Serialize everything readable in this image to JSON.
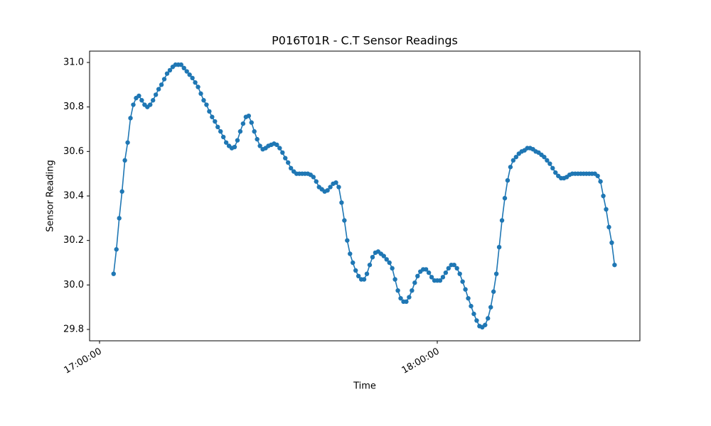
{
  "chart_data": {
    "type": "line",
    "title": "P016T01R - C.T Sensor Readings",
    "x_label": "Time",
    "y_label": "Sensor Reading",
    "xlim": [
      "16:58:14",
      "18:36:00"
    ],
    "xticks": [
      "17:00:00",
      "18:00:00"
    ],
    "ylim": [
      29.749,
      31.051
    ],
    "yticks": [
      29.8,
      {
        "value": 30.0,
        "label": "30.0"
      },
      30.2,
      30.4,
      30.6,
      30.8,
      {
        "value": 31.0,
        "label": "31.0"
      }
    ],
    "grid": false,
    "series": [
      {
        "color": "#1f77b4",
        "x": [
          "17:02:30",
          "17:03:00",
          "17:03:30",
          "17:04:00",
          "17:04:30",
          "17:05:00",
          "17:05:30",
          "17:06:00",
          "17:06:30",
          "17:07:00",
          "17:07:30",
          "17:08:00",
          "17:08:30",
          "17:09:00",
          "17:09:30",
          "17:10:00",
          "17:10:30",
          "17:11:00",
          "17:11:30",
          "17:12:00",
          "17:12:30",
          "17:13:00",
          "17:13:30",
          "17:14:00",
          "17:14:30",
          "17:15:00",
          "17:15:30",
          "17:16:00",
          "17:16:30",
          "17:17:00",
          "17:17:30",
          "17:18:00",
          "17:18:30",
          "17:19:00",
          "17:19:30",
          "17:20:00",
          "17:20:30",
          "17:21:00",
          "17:21:30",
          "17:22:00",
          "17:22:30",
          "17:23:00",
          "17:23:30",
          "17:24:00",
          "17:24:30",
          "17:25:00",
          "17:25:30",
          "17:26:00",
          "17:26:30",
          "17:27:00",
          "17:27:30",
          "17:28:00",
          "17:28:30",
          "17:29:00",
          "17:29:30",
          "17:30:00",
          "17:30:30",
          "17:31:00",
          "17:31:30",
          "17:32:00",
          "17:32:30",
          "17:33:00",
          "17:33:30",
          "17:34:00",
          "17:34:30",
          "17:35:00",
          "17:35:30",
          "17:36:00",
          "17:36:30",
          "17:37:00",
          "17:37:30",
          "17:38:00",
          "17:38:30",
          "17:39:00",
          "17:39:30",
          "17:40:00",
          "17:40:30",
          "17:41:00",
          "17:41:30",
          "17:42:00",
          "17:42:30",
          "17:43:00",
          "17:43:30",
          "17:44:00",
          "17:44:30",
          "17:45:00",
          "17:45:30",
          "17:46:00",
          "17:46:30",
          "17:47:00",
          "17:47:30",
          "17:48:00",
          "17:48:30",
          "17:49:00",
          "17:49:30",
          "17:50:00",
          "17:50:30",
          "17:51:00",
          "17:51:30",
          "17:52:00",
          "17:52:30",
          "17:53:00",
          "17:53:30",
          "17:54:00",
          "17:54:30",
          "17:55:00",
          "17:55:30",
          "17:56:00",
          "17:56:30",
          "17:57:00",
          "17:57:30",
          "17:58:00",
          "17:58:30",
          "17:59:00",
          "17:59:30",
          "18:00:00",
          "18:00:30",
          "18:01:00",
          "18:01:30",
          "18:02:00",
          "18:02:30",
          "18:03:00",
          "18:03:30",
          "18:04:00",
          "18:04:30",
          "18:05:00",
          "18:05:30",
          "18:06:00",
          "18:06:30",
          "18:07:00",
          "18:07:30",
          "18:08:00",
          "18:08:30",
          "18:09:00",
          "18:09:30",
          "18:10:00",
          "18:10:30",
          "18:11:00",
          "18:11:30",
          "18:12:00",
          "18:12:30",
          "18:13:00",
          "18:13:30",
          "18:14:00",
          "18:14:30",
          "18:15:00",
          "18:15:30",
          "18:16:00",
          "18:16:30",
          "18:17:00",
          "18:17:30",
          "18:18:00",
          "18:18:30",
          "18:19:00",
          "18:19:30",
          "18:20:00",
          "18:20:30",
          "18:21:00",
          "18:21:30",
          "18:22:00",
          "18:22:30",
          "18:23:00",
          "18:23:30",
          "18:24:00",
          "18:24:30",
          "18:25:00",
          "18:25:30",
          "18:26:00",
          "18:26:30",
          "18:27:00",
          "18:27:30",
          "18:28:00",
          "18:28:30",
          "18:29:00",
          "18:29:30",
          "18:30:00",
          "18:30:30",
          "18:31:00",
          "18:31:30"
        ],
        "values": [
          30.05,
          30.16,
          30.3,
          30.42,
          30.56,
          30.64,
          30.75,
          30.81,
          30.84,
          30.85,
          30.83,
          30.81,
          30.8,
          30.81,
          30.83,
          30.855,
          30.88,
          30.9,
          30.925,
          30.95,
          30.965,
          30.98,
          30.99,
          30.99,
          30.99,
          30.975,
          30.96,
          30.945,
          30.93,
          30.91,
          30.89,
          30.86,
          30.83,
          30.81,
          30.78,
          30.755,
          30.735,
          30.71,
          30.69,
          30.665,
          30.64,
          30.625,
          30.615,
          30.62,
          30.65,
          30.69,
          30.725,
          30.755,
          30.76,
          30.73,
          30.69,
          30.655,
          30.625,
          30.61,
          30.615,
          30.625,
          30.63,
          30.635,
          30.63,
          30.615,
          30.595,
          30.57,
          30.55,
          30.525,
          30.51,
          30.5,
          30.5,
          30.5,
          30.5,
          30.5,
          30.495,
          30.485,
          30.465,
          30.44,
          30.43,
          30.42,
          30.425,
          30.44,
          30.455,
          30.46,
          30.44,
          30.37,
          30.29,
          30.2,
          30.14,
          30.1,
          30.065,
          30.04,
          30.025,
          30.025,
          30.05,
          30.09,
          30.125,
          30.145,
          30.15,
          30.14,
          30.13,
          30.115,
          30.1,
          30.075,
          30.025,
          29.975,
          29.94,
          29.925,
          29.925,
          29.945,
          29.975,
          30.01,
          30.04,
          30.06,
          30.07,
          30.07,
          30.055,
          30.035,
          30.02,
          30.02,
          30.02,
          30.035,
          30.055,
          30.075,
          30.09,
          30.09,
          30.075,
          30.05,
          30.015,
          29.98,
          29.94,
          29.905,
          29.87,
          29.84,
          29.815,
          29.81,
          29.82,
          29.85,
          29.9,
          29.97,
          30.05,
          30.17,
          30.29,
          30.39,
          30.47,
          30.53,
          30.56,
          30.575,
          30.59,
          30.6,
          30.605,
          30.615,
          30.615,
          30.61,
          30.6,
          30.595,
          30.585,
          30.575,
          30.56,
          30.545,
          30.525,
          30.505,
          30.49,
          30.48,
          30.48,
          30.485,
          30.495,
          30.5,
          30.5,
          30.5,
          30.5,
          30.5,
          30.5,
          30.5,
          30.5,
          30.5,
          30.49,
          30.465,
          30.4,
          30.34,
          30.26,
          30.19,
          30.09
        ]
      }
    ]
  }
}
